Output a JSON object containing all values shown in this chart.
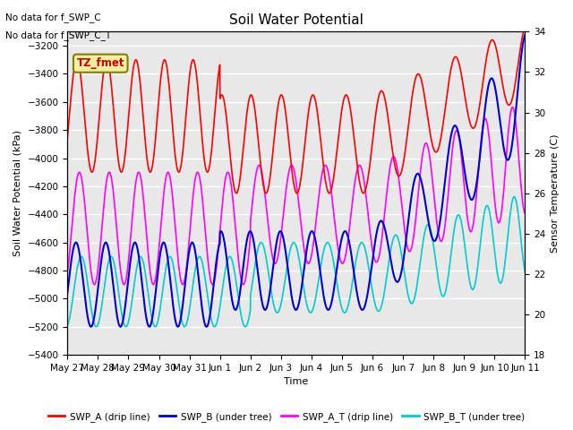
{
  "title": "Soil Water Potential",
  "ylabel_left": "Soil Water Potential (kPa)",
  "ylabel_right": "Sensor Temperature (C)",
  "xlabel": "Time",
  "ylim_left": [
    -5400,
    -3100
  ],
  "ylim_right": [
    18,
    34
  ],
  "yticks_left": [
    -5400,
    -5200,
    -5000,
    -4800,
    -4600,
    -4400,
    -4200,
    -4000,
    -3800,
    -3600,
    -3400,
    -3200
  ],
  "yticks_right": [
    18,
    20,
    22,
    24,
    26,
    28,
    30,
    32,
    34
  ],
  "no_data_text1": "No data for f_SWP_C",
  "no_data_text2": "No data for f_SWP_C_T",
  "tz_label": "TZ_fmet",
  "background_color": "#e8e8e8",
  "grid_color": "#ffffff",
  "color_swpa": "#ff0000",
  "color_swpb": "#0000cc",
  "color_swpa_t": "#ff00ff",
  "color_swpb_t": "#00cccc",
  "xtick_labels": [
    "May 27",
    "May 28",
    "May 29",
    "May 30",
    "May 31",
    "Jun 1",
    "Jun 2",
    "Jun 3",
    "Jun 4",
    "Jun 5",
    "Jun 6",
    "Jun 7",
    "Jun 8",
    "Jun 9",
    "Jun 10",
    "Jun 11"
  ]
}
